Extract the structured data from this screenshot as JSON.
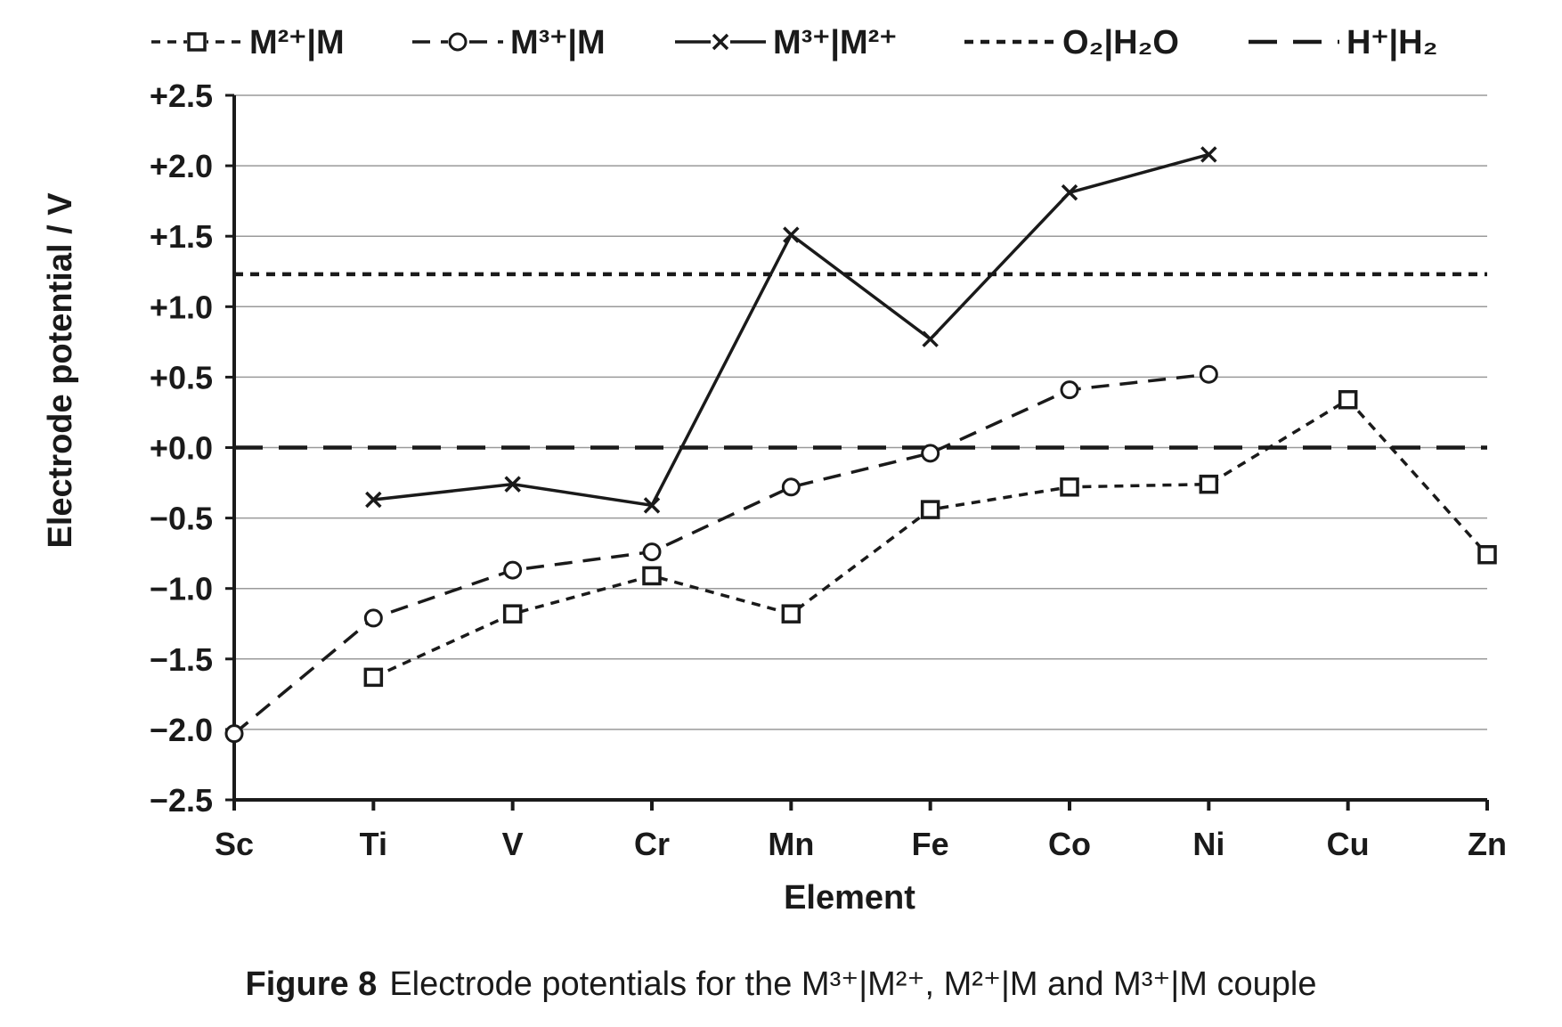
{
  "chart_data": {
    "type": "line",
    "xlabel": "Element",
    "ylabel": "Electrode potential / V",
    "categories": [
      "Sc",
      "Ti",
      "V",
      "Cr",
      "Mn",
      "Fe",
      "Co",
      "Ni",
      "Cu",
      "Zn"
    ],
    "ylim": [
      -2.5,
      2.5
    ],
    "yticks": [
      2.5,
      2.0,
      1.5,
      1.0,
      0.5,
      0.0,
      -0.5,
      -1.0,
      -1.5,
      -2.0,
      -2.5
    ],
    "ytick_labels": [
      "+2.5",
      "+2.0",
      "+1.5",
      "+1.0",
      "+0.5",
      "+0.0",
      "−0.5",
      "−1.0",
      "−1.5",
      "−2.0",
      "−2.5"
    ],
    "grid": true,
    "legend_position": "top",
    "series": [
      {
        "name": "M²⁺|M",
        "marker": "square",
        "dash": "short",
        "values": [
          null,
          -1.63,
          -1.18,
          -0.91,
          -1.18,
          -0.44,
          -0.28,
          -0.26,
          0.34,
          -0.76
        ]
      },
      {
        "name": "M³⁺|M",
        "marker": "circle",
        "dash": "medium",
        "values": [
          -2.03,
          -1.21,
          -0.87,
          -0.74,
          -0.28,
          -0.04,
          0.41,
          0.52,
          null,
          null
        ]
      },
      {
        "name": "M³⁺|M²⁺",
        "marker": "cross",
        "dash": "solid",
        "values": [
          null,
          -0.37,
          -0.26,
          -0.41,
          1.51,
          0.77,
          1.81,
          2.08,
          null,
          null
        ]
      }
    ],
    "reference_lines": [
      {
        "name": "O₂|H₂O",
        "value": 1.23,
        "dash": "short"
      },
      {
        "name": "H⁺|H₂",
        "value": 0.0,
        "dash": "long"
      }
    ]
  },
  "caption": {
    "figure_label": "Figure 8",
    "text": "Electrode potentials for the M³⁺|M²⁺, M²⁺|M and M³⁺|M couple"
  }
}
